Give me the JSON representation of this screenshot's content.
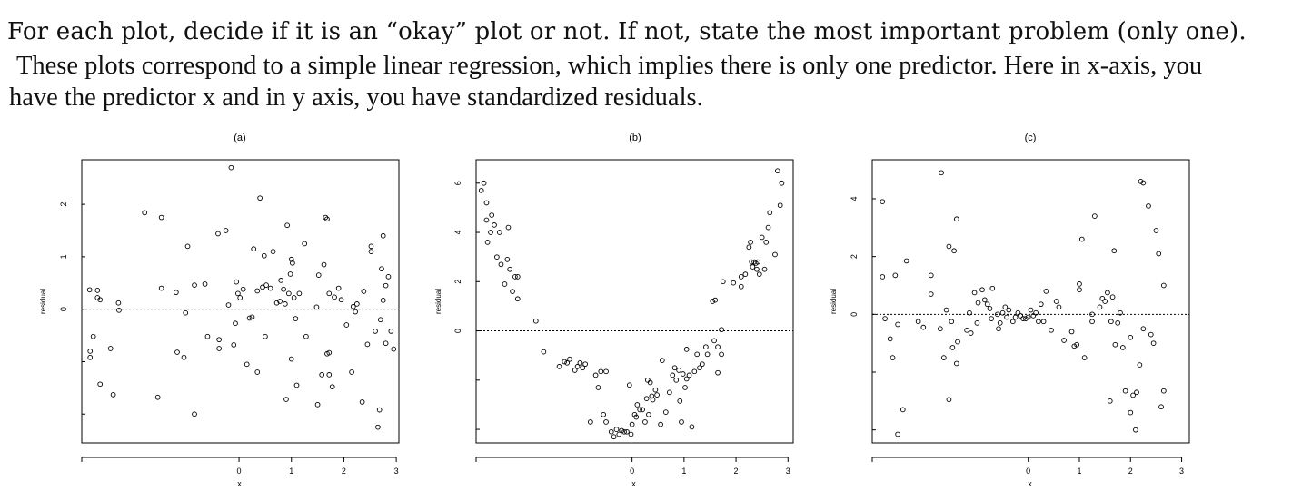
{
  "question": {
    "line1": "For each plot, decide if it is an “okay” plot or not. If not, state the most important problem (only one).",
    "line2": "These plots correspond to a simple linear regression, which implies there is only one predictor. Here in x-axis, you",
    "line3": "have the predictor x and in y axis, you have standardized residuals."
  },
  "chart_data": [
    {
      "type": "scatter",
      "title": "(a)",
      "xlabel": "x",
      "ylabel": "residual",
      "xlim": [
        -3.0,
        3.05
      ],
      "ylim": [
        -2.55,
        2.85
      ],
      "xticks": [
        0,
        1,
        2,
        3
      ],
      "yticks": [
        0,
        1,
        2
      ],
      "reference_line": 0,
      "points": [
        [
          -2.85,
          0.37
        ],
        [
          -2.84,
          -0.8
        ],
        [
          -2.84,
          -0.92
        ],
        [
          -2.78,
          -0.52
        ],
        [
          -2.7,
          0.36
        ],
        [
          -2.7,
          0.22
        ],
        [
          -2.65,
          0.18
        ],
        [
          -2.65,
          -1.43
        ],
        [
          -2.45,
          -0.75
        ],
        [
          -2.4,
          -1.63
        ],
        [
          -2.3,
          0.12
        ],
        [
          -2.29,
          -0.02
        ],
        [
          -1.8,
          1.84
        ],
        [
          -1.55,
          -1.68
        ],
        [
          -1.48,
          1.75
        ],
        [
          -1.48,
          0.4
        ],
        [
          -1.2,
          0.32
        ],
        [
          -1.18,
          -0.82
        ],
        [
          -1.05,
          -0.92
        ],
        [
          -1.02,
          -0.07
        ],
        [
          -0.98,
          1.2
        ],
        [
          -0.85,
          -2.0
        ],
        [
          -0.85,
          0.46
        ],
        [
          -0.65,
          0.48
        ],
        [
          -0.6,
          -0.52
        ],
        [
          -0.4,
          1.44
        ],
        [
          -0.38,
          -0.58
        ],
        [
          -0.38,
          -0.75
        ],
        [
          -0.25,
          1.5
        ],
        [
          -0.2,
          0.08
        ],
        [
          -0.15,
          2.7
        ],
        [
          -0.1,
          -0.68
        ],
        [
          -0.07,
          -0.27
        ],
        [
          -0.05,
          0.52
        ],
        [
          -0.02,
          0.3
        ],
        [
          0.02,
          0.22
        ],
        [
          0.08,
          0.38
        ],
        [
          0.15,
          -1.05
        ],
        [
          0.2,
          -0.17
        ],
        [
          0.25,
          -0.15
        ],
        [
          0.28,
          1.15
        ],
        [
          0.35,
          -1.2
        ],
        [
          0.35,
          0.35
        ],
        [
          0.4,
          2.12
        ],
        [
          0.45,
          0.42
        ],
        [
          0.48,
          1.02
        ],
        [
          0.5,
          -0.52
        ],
        [
          0.52,
          0.46
        ],
        [
          0.6,
          0.4
        ],
        [
          0.65,
          1.1
        ],
        [
          0.72,
          0.12
        ],
        [
          0.78,
          0.15
        ],
        [
          0.8,
          0.55
        ],
        [
          0.85,
          0.38
        ],
        [
          0.88,
          0.1
        ],
        [
          0.9,
          -1.72
        ],
        [
          0.92,
          1.6
        ],
        [
          0.95,
          0.3
        ],
        [
          0.98,
          0.67
        ],
        [
          1.0,
          0.95
        ],
        [
          1.0,
          -0.95
        ],
        [
          1.02,
          0.88
        ],
        [
          1.05,
          0.22
        ],
        [
          1.08,
          -0.18
        ],
        [
          1.1,
          -1.45
        ],
        [
          1.15,
          0.3
        ],
        [
          1.25,
          1.25
        ],
        [
          1.28,
          -0.52
        ],
        [
          1.48,
          0.04
        ],
        [
          1.5,
          -1.82
        ],
        [
          1.52,
          0.65
        ],
        [
          1.58,
          -1.25
        ],
        [
          1.62,
          0.85
        ],
        [
          1.65,
          1.75
        ],
        [
          1.68,
          1.72
        ],
        [
          1.68,
          -0.85
        ],
        [
          1.72,
          -0.83
        ],
        [
          1.72,
          0.3
        ],
        [
          1.72,
          -1.25
        ],
        [
          1.78,
          -1.48
        ],
        [
          1.82,
          0.23
        ],
        [
          1.9,
          0.4
        ],
        [
          1.95,
          0.18
        ],
        [
          2.05,
          -0.3
        ],
        [
          2.15,
          -1.2
        ],
        [
          2.18,
          0.05
        ],
        [
          2.22,
          -0.05
        ],
        [
          2.25,
          0.1
        ],
        [
          2.35,
          -1.77
        ],
        [
          2.38,
          0.34
        ],
        [
          2.45,
          -0.67
        ],
        [
          2.52,
          1.1
        ],
        [
          2.52,
          1.2
        ],
        [
          2.6,
          -0.42
        ],
        [
          2.65,
          -2.25
        ],
        [
          2.68,
          -1.92
        ],
        [
          2.7,
          -0.2
        ],
        [
          2.72,
          0.77
        ],
        [
          2.75,
          1.4
        ],
        [
          2.75,
          0.17
        ],
        [
          2.8,
          0.45
        ],
        [
          2.8,
          -0.65
        ],
        [
          2.85,
          0.62
        ],
        [
          2.9,
          -0.42
        ],
        [
          2.95,
          -0.76
        ]
      ]
    },
    {
      "type": "scatter",
      "title": "(b)",
      "xlabel": "x",
      "ylabel": "residual",
      "xlim": [
        -3.0,
        3.1
      ],
      "ylim": [
        -4.55,
        6.95
      ],
      "xticks": [
        0,
        1,
        2,
        3
      ],
      "yticks": [
        0,
        2,
        4,
        6
      ],
      "reference_line": 0,
      "points": [
        [
          -2.9,
          5.7
        ],
        [
          -2.85,
          6.0
        ],
        [
          -2.8,
          5.2
        ],
        [
          -2.8,
          4.5
        ],
        [
          -2.78,
          3.6
        ],
        [
          -2.72,
          4.0
        ],
        [
          -2.7,
          4.7
        ],
        [
          -2.65,
          4.3
        ],
        [
          -2.6,
          3.0
        ],
        [
          -2.55,
          4.0
        ],
        [
          -2.52,
          2.7
        ],
        [
          -2.45,
          1.9
        ],
        [
          -2.4,
          2.9
        ],
        [
          -2.38,
          4.2
        ],
        [
          -2.35,
          2.5
        ],
        [
          -2.3,
          1.6
        ],
        [
          -2.25,
          2.2
        ],
        [
          -2.2,
          1.3
        ],
        [
          -2.2,
          2.2
        ],
        [
          -1.85,
          0.4
        ],
        [
          -1.7,
          -0.85
        ],
        [
          -1.4,
          -1.45
        ],
        [
          -1.3,
          -1.25
        ],
        [
          -1.25,
          -1.3
        ],
        [
          -1.2,
          -1.15
        ],
        [
          -1.1,
          -1.6
        ],
        [
          -1.05,
          -1.45
        ],
        [
          -1.0,
          -1.3
        ],
        [
          -0.95,
          -1.5
        ],
        [
          -0.9,
          -1.35
        ],
        [
          -0.8,
          -3.7
        ],
        [
          -0.7,
          -1.8
        ],
        [
          -0.65,
          -2.3
        ],
        [
          -0.6,
          -1.65
        ],
        [
          -0.55,
          -3.4
        ],
        [
          -0.5,
          -1.65
        ],
        [
          -0.5,
          -3.7
        ],
        [
          -0.4,
          -4.1
        ],
        [
          -0.35,
          -4.3
        ],
        [
          -0.3,
          -4.0
        ],
        [
          -0.25,
          -4.2
        ],
        [
          -0.2,
          -4.05
        ],
        [
          -0.15,
          -4.1
        ],
        [
          -0.1,
          -4.1
        ],
        [
          -0.05,
          -2.2
        ],
        [
          -0.02,
          -4.2
        ],
        [
          0.0,
          -3.8
        ],
        [
          0.05,
          -3.4
        ],
        [
          0.08,
          -3.5
        ],
        [
          0.1,
          -3.0
        ],
        [
          0.15,
          -3.2
        ],
        [
          0.2,
          -3.2
        ],
        [
          0.25,
          -3.7
        ],
        [
          0.28,
          -2.75
        ],
        [
          0.3,
          -2.0
        ],
        [
          0.32,
          -3.4
        ],
        [
          0.35,
          -2.1
        ],
        [
          0.38,
          -2.65
        ],
        [
          0.4,
          -2.8
        ],
        [
          0.45,
          -2.4
        ],
        [
          0.48,
          -2.6
        ],
        [
          0.55,
          -3.8
        ],
        [
          0.58,
          -1.2
        ],
        [
          0.65,
          -3.3
        ],
        [
          0.72,
          -2.5
        ],
        [
          0.78,
          -1.8
        ],
        [
          0.82,
          -1.5
        ],
        [
          0.85,
          -2.0
        ],
        [
          0.9,
          -1.6
        ],
        [
          0.92,
          -2.85
        ],
        [
          0.95,
          -3.7
        ],
        [
          0.98,
          -1.75
        ],
        [
          1.02,
          -2.3
        ],
        [
          1.05,
          -1.95
        ],
        [
          1.05,
          -0.75
        ],
        [
          1.1,
          -1.8
        ],
        [
          1.15,
          -3.9
        ],
        [
          1.2,
          -1.65
        ],
        [
          1.25,
          -0.95
        ],
        [
          1.3,
          -1.5
        ],
        [
          1.35,
          -1.35
        ],
        [
          1.42,
          -0.65
        ],
        [
          1.45,
          -0.95
        ],
        [
          1.55,
          1.2
        ],
        [
          1.58,
          -0.4
        ],
        [
          1.6,
          1.25
        ],
        [
          1.65,
          -0.65
        ],
        [
          1.65,
          -1.7
        ],
        [
          1.72,
          0.05
        ],
        [
          1.72,
          -0.95
        ],
        [
          1.75,
          2.0
        ],
        [
          1.95,
          1.95
        ],
        [
          2.1,
          1.8
        ],
        [
          2.1,
          2.2
        ],
        [
          2.18,
          2.3
        ],
        [
          2.25,
          3.4
        ],
        [
          2.28,
          3.6
        ],
        [
          2.3,
          2.8
        ],
        [
          2.32,
          2.6
        ],
        [
          2.35,
          2.8
        ],
        [
          2.38,
          2.75
        ],
        [
          2.4,
          2.5
        ],
        [
          2.42,
          2.8
        ],
        [
          2.45,
          2.3
        ],
        [
          2.5,
          3.8
        ],
        [
          2.55,
          2.5
        ],
        [
          2.58,
          3.6
        ],
        [
          2.62,
          4.2
        ],
        [
          2.65,
          4.8
        ],
        [
          2.75,
          3.1
        ],
        [
          2.8,
          6.5
        ],
        [
          2.85,
          5.1
        ],
        [
          2.88,
          6.0
        ]
      ]
    },
    {
      "type": "scatter",
      "title": "(c)",
      "xlabel": "x",
      "ylabel": "residual",
      "xlim": [
        -3.05,
        3.15
      ],
      "ylim": [
        -4.45,
        5.35
      ],
      "xticks": [
        0,
        1,
        2,
        3
      ],
      "yticks": [
        0,
        2,
        4
      ],
      "reference_line": 0,
      "points": [
        [
          -2.85,
          3.9
        ],
        [
          -2.85,
          1.3
        ],
        [
          -2.8,
          -0.15
        ],
        [
          -2.7,
          -0.85
        ],
        [
          -2.65,
          -1.5
        ],
        [
          -2.6,
          1.35
        ],
        [
          -2.55,
          -0.35
        ],
        [
          -2.55,
          -4.15
        ],
        [
          -2.45,
          -3.3
        ],
        [
          -2.38,
          1.85
        ],
        [
          -2.15,
          -0.25
        ],
        [
          -2.05,
          -0.45
        ],
        [
          -1.9,
          0.7
        ],
        [
          -1.9,
          1.35
        ],
        [
          -1.72,
          -0.5
        ],
        [
          -1.7,
          4.9
        ],
        [
          -1.65,
          -1.5
        ],
        [
          -1.6,
          0.15
        ],
        [
          -1.55,
          -2.95
        ],
        [
          -1.55,
          2.35
        ],
        [
          -1.5,
          -0.25
        ],
        [
          -1.48,
          -1.15
        ],
        [
          -1.45,
          2.2
        ],
        [
          -1.4,
          -1.7
        ],
        [
          -1.4,
          3.3
        ],
        [
          -1.38,
          -0.95
        ],
        [
          -1.2,
          -0.55
        ],
        [
          -1.15,
          0.05
        ],
        [
          -1.12,
          -0.65
        ],
        [
          -1.05,
          0.75
        ],
        [
          -1.0,
          -0.3
        ],
        [
          -0.98,
          0.4
        ],
        [
          -0.9,
          0.85
        ],
        [
          -0.85,
          0.5
        ],
        [
          -0.8,
          0.35
        ],
        [
          -0.75,
          0.2
        ],
        [
          -0.72,
          -0.15
        ],
        [
          -0.7,
          0.9
        ],
        [
          -0.6,
          0.0
        ],
        [
          -0.58,
          -0.5
        ],
        [
          -0.55,
          -0.3
        ],
        [
          -0.5,
          0.05
        ],
        [
          -0.45,
          0.25
        ],
        [
          -0.42,
          -0.1
        ],
        [
          -0.38,
          0.15
        ],
        [
          -0.3,
          -0.25
        ],
        [
          -0.25,
          -0.1
        ],
        [
          -0.2,
          0.05
        ],
        [
          -0.15,
          -0.05
        ],
        [
          -0.1,
          -0.15
        ],
        [
          -0.05,
          -0.15
        ],
        [
          0.0,
          -0.1
        ],
        [
          0.05,
          0.15
        ],
        [
          0.1,
          -0.05
        ],
        [
          0.15,
          0.05
        ],
        [
          0.2,
          -0.25
        ],
        [
          0.25,
          0.35
        ],
        [
          0.3,
          -0.25
        ],
        [
          0.35,
          0.8
        ],
        [
          0.45,
          -0.55
        ],
        [
          0.55,
          0.45
        ],
        [
          0.6,
          0.25
        ],
        [
          0.7,
          -0.9
        ],
        [
          0.85,
          -0.6
        ],
        [
          0.9,
          -1.1
        ],
        [
          0.95,
          -1.05
        ],
        [
          1.0,
          0.85
        ],
        [
          1.0,
          1.05
        ],
        [
          1.05,
          2.6
        ],
        [
          1.1,
          -1.5
        ],
        [
          1.25,
          -0.25
        ],
        [
          1.25,
          0.0
        ],
        [
          1.3,
          3.4
        ],
        [
          1.4,
          0.25
        ],
        [
          1.45,
          0.55
        ],
        [
          1.5,
          0.45
        ],
        [
          1.55,
          0.75
        ],
        [
          1.6,
          -3.0
        ],
        [
          1.62,
          -0.25
        ],
        [
          1.65,
          0.6
        ],
        [
          1.68,
          2.2
        ],
        [
          1.7,
          -1.05
        ],
        [
          1.75,
          -0.3
        ],
        [
          1.8,
          0.05
        ],
        [
          1.85,
          -1.15
        ],
        [
          1.9,
          -2.65
        ],
        [
          2.0,
          -3.4
        ],
        [
          2.0,
          -0.8
        ],
        [
          2.05,
          -2.8
        ],
        [
          2.1,
          -4.0
        ],
        [
          2.12,
          -2.7
        ],
        [
          2.18,
          -1.75
        ],
        [
          2.2,
          4.6
        ],
        [
          2.25,
          -0.5
        ],
        [
          2.25,
          4.55
        ],
        [
          2.35,
          3.75
        ],
        [
          2.4,
          -0.7
        ],
        [
          2.45,
          -1.0
        ],
        [
          2.5,
          2.9
        ],
        [
          2.55,
          2.1
        ],
        [
          2.6,
          -3.2
        ],
        [
          2.65,
          -2.65
        ],
        [
          2.65,
          1.0
        ]
      ]
    }
  ]
}
